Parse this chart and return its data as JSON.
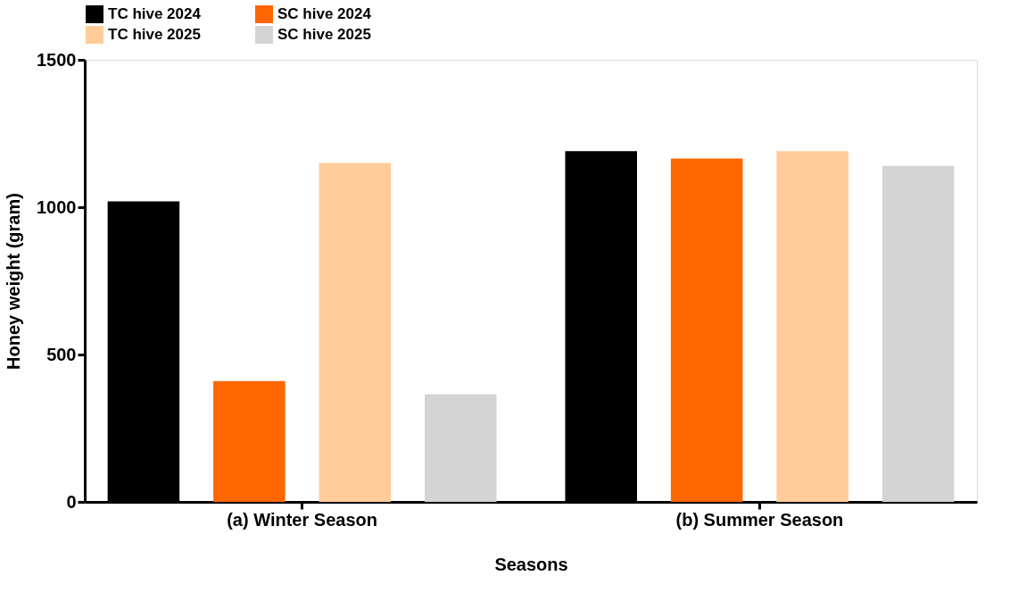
{
  "chart_data": {
    "type": "bar",
    "xlabel": "Seasons",
    "ylabel": "Honey weight (gram)",
    "categories": [
      "(a) Winter Season",
      "(b) Summer Season"
    ],
    "series": [
      {
        "name": "TC hive 2024",
        "color": "#000000",
        "values": [
          1020,
          1190
        ]
      },
      {
        "name": "SC hive 2024",
        "color": "#ff6600",
        "values": [
          410,
          1165
        ]
      },
      {
        "name": "TC hive 2025",
        "color": "#ffcc99",
        "values": [
          1150,
          1190
        ]
      },
      {
        "name": "SC hive 2025",
        "color": "#d4d4d4",
        "values": [
          365,
          1140
        ]
      }
    ],
    "ylim": [
      0,
      1500
    ],
    "yticks": [
      0,
      500,
      1000,
      1500
    ],
    "grid": false,
    "legend": "top"
  }
}
